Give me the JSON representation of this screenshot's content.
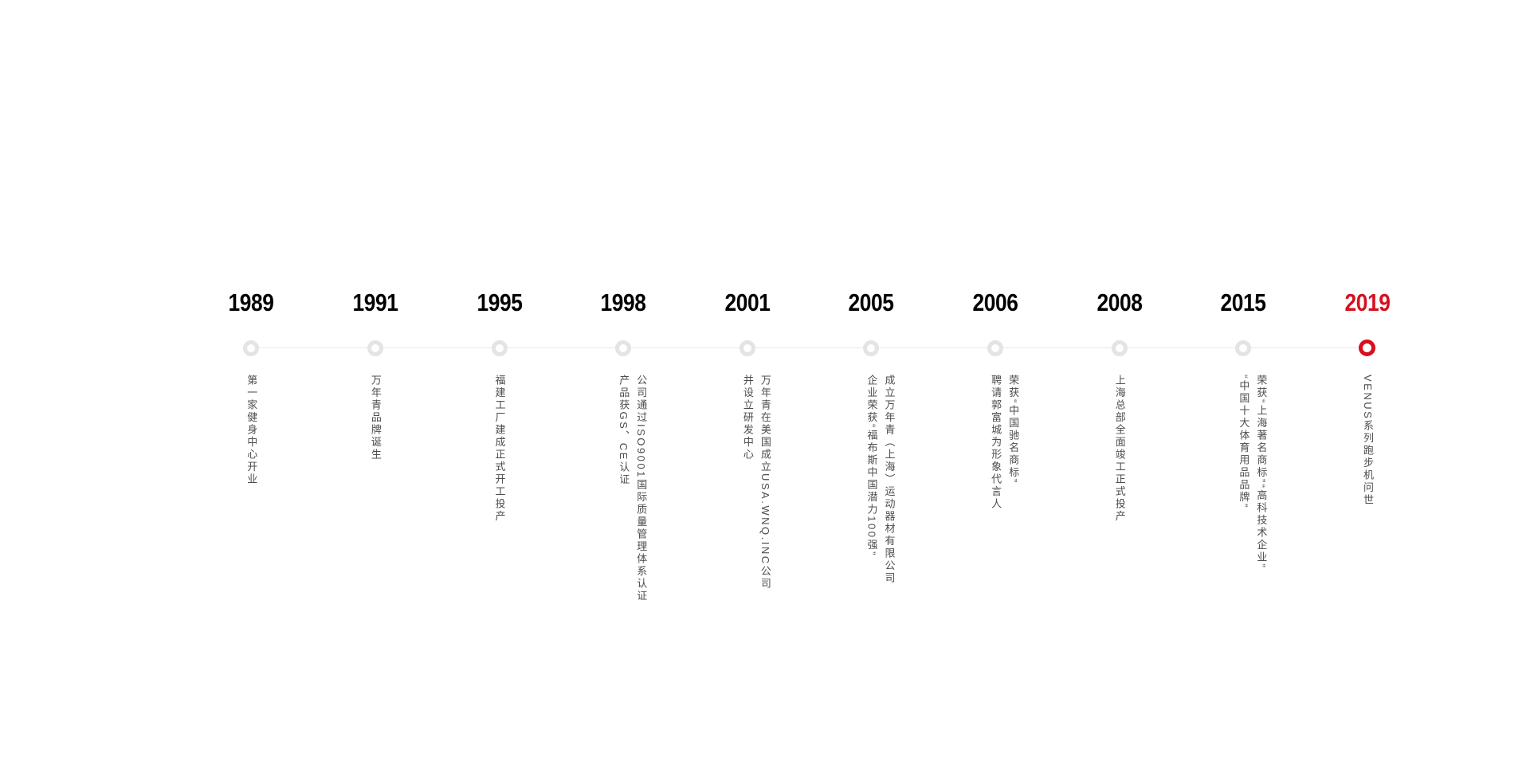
{
  "page": {
    "background_color": "#ffffff"
  },
  "colors": {
    "accent": "#d6101f",
    "node_ring": "#e4e4e4",
    "rail_line": "#e9e9e9",
    "event_text": "#4d4d4d",
    "year_text": "#000000"
  },
  "timeline": {
    "items": [
      {
        "year": "1989",
        "highlight": false,
        "lines": [
          "第一家健身中心开业"
        ]
      },
      {
        "year": "1991",
        "highlight": false,
        "lines": [
          "万年青品牌诞生"
        ]
      },
      {
        "year": "1995",
        "highlight": false,
        "lines": [
          "福建工厂建成正式开工投产"
        ]
      },
      {
        "year": "1998",
        "highlight": false,
        "lines": [
          "公司通过ISO9001国际质量管理体系认证",
          "产品获GS、CE认证"
        ]
      },
      {
        "year": "2001",
        "highlight": false,
        "lines": [
          "万年青在美国成立USA.WNQ.INC公司",
          "并设立研发中心"
        ]
      },
      {
        "year": "2005",
        "highlight": false,
        "lines": [
          "成立万年青（上海）运动器材有限公司",
          "企业荣获“福布斯中国潜力100强”"
        ]
      },
      {
        "year": "2006",
        "highlight": false,
        "lines": [
          "荣获“中国驰名商标”",
          "聘请郭富城为形象代言人"
        ]
      },
      {
        "year": "2008",
        "highlight": false,
        "lines": [
          "上海总部全面竣工正式投产"
        ]
      },
      {
        "year": "2015",
        "highlight": false,
        "lines": [
          "荣获“上海著名商标”“高科技术企业”",
          "“中国十大体育用品品牌”"
        ]
      },
      {
        "year": "2019",
        "highlight": true,
        "lines": [
          "VENUS系列跑步机问世"
        ]
      }
    ]
  }
}
